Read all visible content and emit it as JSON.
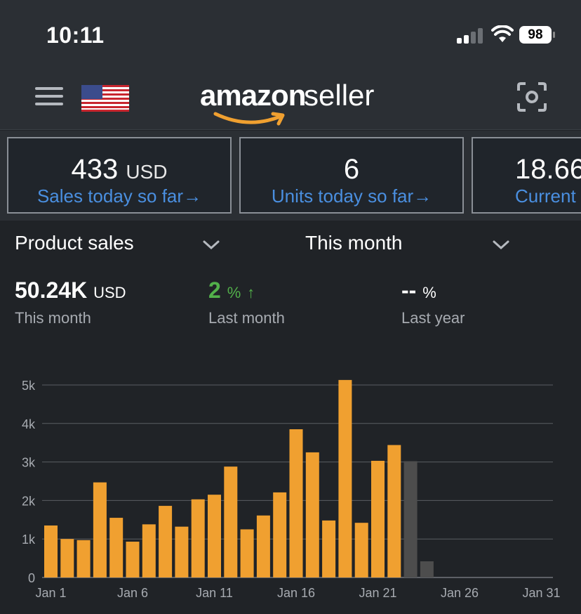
{
  "status": {
    "time": "10:11",
    "battery": "98"
  },
  "header": {
    "logo_main": "amazon",
    "logo_sub": "seller"
  },
  "cards": [
    {
      "value": "433",
      "unit": "USD",
      "link": "Sales today so far"
    },
    {
      "value": "6",
      "unit": "",
      "link": "Units today so far"
    },
    {
      "value": "18.66",
      "unit": "",
      "link": "Current b"
    }
  ],
  "filters": {
    "metric": "Product sales",
    "period": "This month"
  },
  "metrics": {
    "total": {
      "value": "50.24K",
      "unit": "USD",
      "label": "This month"
    },
    "last_month": {
      "value": "2",
      "unit": "%",
      "label": "Last month"
    },
    "last_year": {
      "value": "--",
      "unit": "%",
      "label": "Last year"
    }
  },
  "colors": {
    "bar": "#f0a030",
    "bar_projected": "#4d4d4d",
    "link": "#4a8fe0",
    "positive": "#52b04a"
  },
  "chart_data": {
    "type": "bar",
    "x": [
      1,
      2,
      3,
      4,
      5,
      6,
      7,
      8,
      9,
      10,
      11,
      12,
      13,
      14,
      15,
      16,
      17,
      18,
      19,
      20,
      21,
      22,
      23,
      24,
      25,
      26,
      27,
      28,
      29,
      30,
      31
    ],
    "x_ticks": [
      "Jan 1",
      "Jan 6",
      "Jan 11",
      "Jan 16",
      "Jan 21",
      "Jan 26",
      "Jan 31"
    ],
    "y_ticks": [
      "0",
      "1k",
      "2k",
      "3k",
      "4k",
      "5k"
    ],
    "ylim": [
      0,
      5000
    ],
    "series": [
      {
        "values": [
          1350,
          1000,
          970,
          2470,
          1550,
          930,
          1380,
          1860,
          1320,
          2030,
          2150,
          2880,
          1250,
          1610,
          2210,
          3850,
          3250,
          1480,
          5130,
          1420,
          3030,
          3440,
          null,
          null,
          null,
          null,
          null,
          null,
          null,
          null,
          null
        ]
      },
      {
        "values": [
          null,
          null,
          null,
          null,
          null,
          null,
          null,
          null,
          null,
          null,
          null,
          null,
          null,
          null,
          null,
          null,
          null,
          null,
          null,
          null,
          null,
          null,
          3020,
          420,
          null,
          null,
          null,
          null,
          null,
          null,
          null
        ]
      }
    ],
    "grid": true
  }
}
